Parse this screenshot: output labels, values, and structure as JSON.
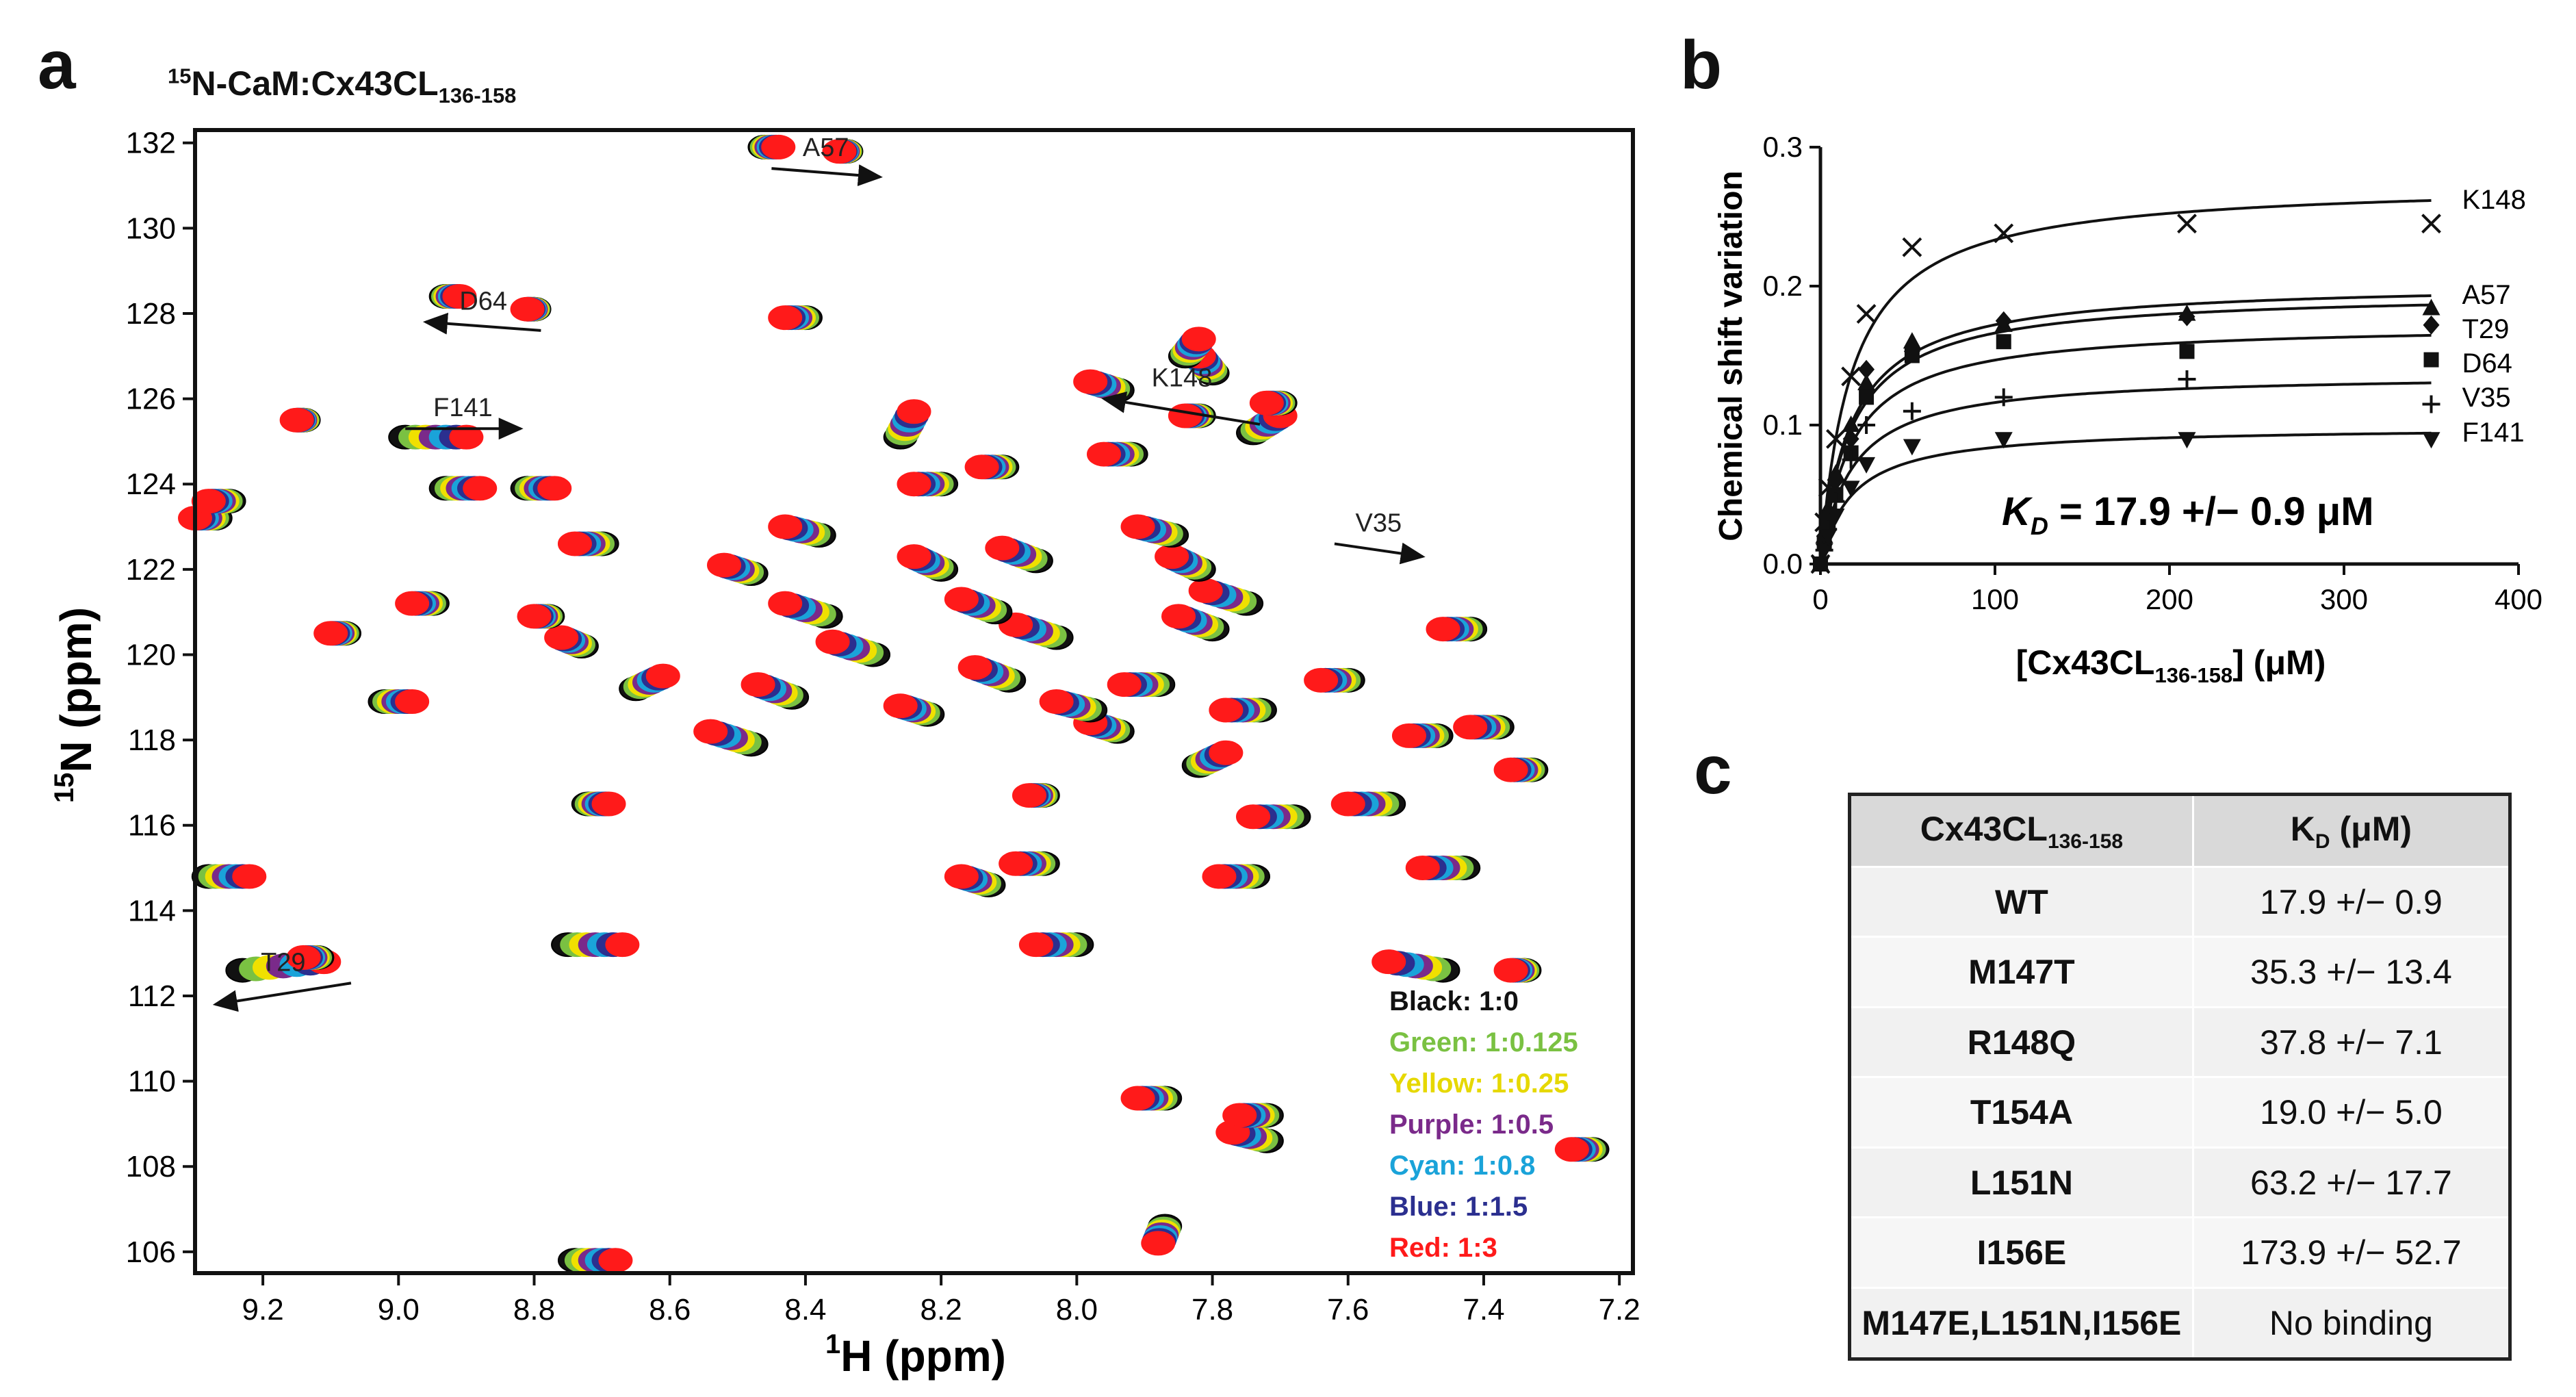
{
  "panels": {
    "a": {
      "letter": "a",
      "title_prefix": "15",
      "title_main": "N-CaM:Cx43CL",
      "title_sub": "136-158",
      "x_label_sup": "1",
      "x_label": "H (ppm)",
      "y_label_sup": "15",
      "y_label": "N (ppm)",
      "x_ticks": [
        "9.2",
        "9.0",
        "8.8",
        "8.6",
        "8.4",
        "8.2",
        "8.0",
        "7.8",
        "7.6",
        "7.4",
        "7.2"
      ],
      "y_ticks": [
        "106",
        "108",
        "110",
        "112",
        "114",
        "116",
        "118",
        "120",
        "122",
        "124",
        "126",
        "128",
        "130",
        "132"
      ],
      "arrow_labels": [
        "T29",
        "V35",
        "F141",
        "D64",
        "K148",
        "A57"
      ],
      "legend": [
        {
          "text": "Black: 1:0",
          "color": "#111111"
        },
        {
          "text": "Green: 1:0.125",
          "color": "#7ac142"
        },
        {
          "text": "Yellow: 1:0.25",
          "color": "#f0e000"
        },
        {
          "text": "Purple: 1:0.5",
          "color": "#7a2a8a"
        },
        {
          "text": "Cyan: 1:0.8",
          "color": "#1aa3d9"
        },
        {
          "text": "Blue: 1:1.5",
          "color": "#2b2f8f"
        },
        {
          "text": "Red: 1:3",
          "color": "#ff1a1a"
        }
      ]
    },
    "b": {
      "letter": "b",
      "y_label": "Chemical shift variation",
      "x_label_main": "[Cx43CL",
      "x_label_sub": "136-158",
      "x_label_end": "] (μM)",
      "kd_label_k": "K",
      "kd_label_sub": "D",
      "kd_label_val": " = 17.9 +/− 0.9 μM"
    },
    "c": {
      "letter": "c",
      "header_col1_main": "Cx43CL",
      "header_col1_sub": "136-158",
      "header_col2_main": "K",
      "header_col2_sub": "D",
      "header_col2_end": " (μM)",
      "rows": [
        {
          "variant": "WT",
          "kd": "17.9 +/− 0.9"
        },
        {
          "variant": "M147T",
          "kd": "35.3 +/− 13.4"
        },
        {
          "variant": "R148Q",
          "kd": "37.8 +/− 7.1"
        },
        {
          "variant": "T154A",
          "kd": "19.0 +/− 5.0"
        },
        {
          "variant": "L151N",
          "kd": "63.2 +/− 17.7"
        },
        {
          "variant": "I156E",
          "kd": "173.9 +/− 52.7"
        },
        {
          "variant": "M147E,L151N,I156E",
          "kd": "No binding"
        }
      ]
    }
  },
  "chart_data": [
    {
      "type": "scatter",
      "title": "15N-CaM:Cx43CL136-158",
      "xlabel": "1H (ppm)",
      "ylabel": "15N (ppm)",
      "xlim": [
        9.3,
        7.18
      ],
      "ylim": [
        132.3,
        105.5
      ],
      "x_reversed": true,
      "y_reversed": true,
      "titration_series": [
        "Black: 1:0",
        "Green: 1:0.125",
        "Yellow: 1:0.25",
        "Purple: 1:0.5",
        "Cyan: 1:0.8",
        "Blue: 1:1.5",
        "Red: 1:3"
      ],
      "peaks": [
        {
          "x": 8.74,
          "y": 105.8,
          "dx": -0.06,
          "dy": 0
        },
        {
          "x": 7.87,
          "y": 106.6,
          "dx": 0.01,
          "dy": -0.4
        },
        {
          "x": 7.24,
          "y": 108.4,
          "dx": 0.03,
          "dy": 0
        },
        {
          "x": 7.72,
          "y": 108.6,
          "dx": 0.05,
          "dy": 0.2
        },
        {
          "x": 7.72,
          "y": 109.2,
          "dx": 0.04,
          "dy": 0
        },
        {
          "x": 7.87,
          "y": 109.6,
          "dx": 0.04,
          "dy": 0
        },
        {
          "x": 9.23,
          "y": 112.6,
          "dx": -0.12,
          "dy": 0.2
        },
        {
          "x": 9.12,
          "y": 112.9,
          "dx": 0.02,
          "dy": 0
        },
        {
          "x": 7.34,
          "y": 112.6,
          "dx": 0.02,
          "dy": 0
        },
        {
          "x": 8.75,
          "y": 113.2,
          "dx": -0.08,
          "dy": 0
        },
        {
          "x": 7.46,
          "y": 112.6,
          "dx": 0.08,
          "dy": 0.2
        },
        {
          "x": 8.0,
          "y": 113.2,
          "dx": 0.06,
          "dy": 0
        },
        {
          "x": 9.28,
          "y": 114.8,
          "dx": -0.06,
          "dy": 0
        },
        {
          "x": 8.13,
          "y": 114.6,
          "dx": 0.04,
          "dy": 0.2
        },
        {
          "x": 8.05,
          "y": 115.1,
          "dx": 0.04,
          "dy": 0
        },
        {
          "x": 7.74,
          "y": 114.8,
          "dx": 0.05,
          "dy": 0
        },
        {
          "x": 7.43,
          "y": 115.0,
          "dx": 0.06,
          "dy": 0
        },
        {
          "x": 8.72,
          "y": 116.5,
          "dx": -0.03,
          "dy": 0
        },
        {
          "x": 8.05,
          "y": 116.7,
          "dx": 0.02,
          "dy": 0
        },
        {
          "x": 7.68,
          "y": 116.2,
          "dx": 0.06,
          "dy": 0
        },
        {
          "x": 7.54,
          "y": 116.5,
          "dx": 0.06,
          "dy": 0
        },
        {
          "x": 7.33,
          "y": 117.3,
          "dx": 0.03,
          "dy": 0
        },
        {
          "x": 8.48,
          "y": 117.9,
          "dx": 0.06,
          "dy": 0.3
        },
        {
          "x": 7.94,
          "y": 118.2,
          "dx": 0.04,
          "dy": 0.2
        },
        {
          "x": 7.82,
          "y": 117.4,
          "dx": -0.04,
          "dy": 0.3
        },
        {
          "x": 8.22,
          "y": 118.6,
          "dx": 0.04,
          "dy": 0.2
        },
        {
          "x": 7.98,
          "y": 118.7,
          "dx": 0.05,
          "dy": 0.2
        },
        {
          "x": 7.73,
          "y": 118.7,
          "dx": 0.05,
          "dy": 0
        },
        {
          "x": 7.47,
          "y": 118.1,
          "dx": 0.04,
          "dy": 0
        },
        {
          "x": 7.38,
          "y": 118.3,
          "dx": 0.04,
          "dy": 0
        },
        {
          "x": 9.02,
          "y": 118.9,
          "dx": -0.04,
          "dy": 0
        },
        {
          "x": 8.65,
          "y": 119.2,
          "dx": -0.04,
          "dy": 0.3
        },
        {
          "x": 8.42,
          "y": 119.0,
          "dx": 0.05,
          "dy": 0.3
        },
        {
          "x": 8.1,
          "y": 119.4,
          "dx": 0.05,
          "dy": 0.3
        },
        {
          "x": 7.88,
          "y": 119.3,
          "dx": 0.05,
          "dy": 0
        },
        {
          "x": 7.6,
          "y": 119.4,
          "dx": 0.04,
          "dy": 0
        },
        {
          "x": 8.73,
          "y": 120.2,
          "dx": 0.03,
          "dy": 0.2
        },
        {
          "x": 8.3,
          "y": 120.0,
          "dx": 0.06,
          "dy": 0.3
        },
        {
          "x": 8.03,
          "y": 120.4,
          "dx": 0.06,
          "dy": 0.3
        },
        {
          "x": 7.8,
          "y": 120.6,
          "dx": 0.05,
          "dy": 0.3
        },
        {
          "x": 9.08,
          "y": 120.5,
          "dx": 0.02,
          "dy": 0
        },
        {
          "x": 8.78,
          "y": 120.9,
          "dx": 0.02,
          "dy": 0
        },
        {
          "x": 8.37,
          "y": 120.9,
          "dx": 0.06,
          "dy": 0.3
        },
        {
          "x": 8.12,
          "y": 121.0,
          "dx": 0.05,
          "dy": 0.3
        },
        {
          "x": 7.75,
          "y": 121.2,
          "dx": 0.06,
          "dy": 0.3
        },
        {
          "x": 7.42,
          "y": 120.6,
          "dx": 0.04,
          "dy": 0
        },
        {
          "x": 8.95,
          "y": 121.2,
          "dx": 0.03,
          "dy": 0
        },
        {
          "x": 8.48,
          "y": 121.9,
          "dx": 0.04,
          "dy": 0.2
        },
        {
          "x": 8.2,
          "y": 122.0,
          "dx": 0.04,
          "dy": 0.3
        },
        {
          "x": 8.06,
          "y": 122.2,
          "dx": 0.05,
          "dy": 0.3
        },
        {
          "x": 7.82,
          "y": 122.0,
          "dx": 0.04,
          "dy": 0.3
        },
        {
          "x": 9.27,
          "y": 123.2,
          "dx": 0.03,
          "dy": 0
        },
        {
          "x": 8.7,
          "y": 122.6,
          "dx": 0.04,
          "dy": 0
        },
        {
          "x": 8.38,
          "y": 122.8,
          "dx": 0.05,
          "dy": 0.2
        },
        {
          "x": 7.86,
          "y": 122.8,
          "dx": 0.05,
          "dy": 0.2
        },
        {
          "x": 9.25,
          "y": 123.6,
          "dx": 0.03,
          "dy": 0
        },
        {
          "x": 8.81,
          "y": 123.9,
          "dx": -0.04,
          "dy": 0
        },
        {
          "x": 8.93,
          "y": 123.9,
          "dx": -0.05,
          "dy": 0
        },
        {
          "x": 8.2,
          "y": 124.0,
          "dx": 0.04,
          "dy": 0
        },
        {
          "x": 8.11,
          "y": 124.4,
          "dx": 0.03,
          "dy": 0
        },
        {
          "x": 7.92,
          "y": 124.7,
          "dx": 0.04,
          "dy": 0
        },
        {
          "x": 8.26,
          "y": 125.1,
          "dx": -0.02,
          "dy": 0.6
        },
        {
          "x": 8.99,
          "y": 125.1,
          "dx": -0.09,
          "dy": 0
        },
        {
          "x": 9.14,
          "y": 125.5,
          "dx": 0.01,
          "dy": 0
        },
        {
          "x": 7.74,
          "y": 125.2,
          "dx": -0.04,
          "dy": 0.4
        },
        {
          "x": 7.7,
          "y": 125.9,
          "dx": 0.02,
          "dy": 0
        },
        {
          "x": 7.82,
          "y": 125.6,
          "dx": 0.02,
          "dy": 0
        },
        {
          "x": 7.8,
          "y": 126.6,
          "dx": 0.02,
          "dy": 0.4
        },
        {
          "x": 7.84,
          "y": 127.0,
          "dx": -0.02,
          "dy": 0.4
        },
        {
          "x": 7.94,
          "y": 126.2,
          "dx": 0.04,
          "dy": 0.2
        },
        {
          "x": 8.4,
          "y": 127.9,
          "dx": 0.03,
          "dy": 0
        },
        {
          "x": 8.8,
          "y": 128.1,
          "dx": 0.01,
          "dy": 0
        },
        {
          "x": 8.93,
          "y": 128.4,
          "dx": -0.02,
          "dy": 0
        },
        {
          "x": 8.46,
          "y": 131.9,
          "dx": -0.02,
          "dy": 0
        },
        {
          "x": 8.34,
          "y": 131.8,
          "dx": 0.01,
          "dy": 0
        }
      ],
      "arrows": [
        {
          "label": "T29",
          "from": [
            9.07,
            112.3
          ],
          "to": [
            9.27,
            111.8
          ]
        },
        {
          "label": "V35",
          "from": [
            7.62,
            122.6
          ],
          "to": [
            7.49,
            122.3
          ]
        },
        {
          "label": "F141",
          "from": [
            8.99,
            125.3
          ],
          "to": [
            8.82,
            125.3
          ]
        },
        {
          "label": "D64",
          "from": [
            8.79,
            127.6
          ],
          "to": [
            8.96,
            127.8
          ]
        },
        {
          "label": "K148",
          "from": [
            7.73,
            125.4
          ],
          "to": [
            7.96,
            126.0
          ]
        },
        {
          "label": "A57",
          "from": [
            8.45,
            131.4
          ],
          "to": [
            8.29,
            131.2
          ]
        }
      ]
    },
    {
      "type": "scatter",
      "xlabel": "[Cx43CL136-158] (μM)",
      "ylabel": "Chemical shift variation",
      "xlim": [
        0,
        400
      ],
      "ylim": [
        0,
        0.3
      ],
      "x_ticks": [
        0,
        100,
        200,
        300,
        400
      ],
      "y_ticks": [
        0.0,
        0.1,
        0.2,
        0.3
      ],
      "x_tick_labels": [
        "0",
        "100",
        "200",
        "300",
        "400"
      ],
      "y_tick_labels": [
        "0.0",
        "0.1",
        "0.2",
        "0.3"
      ],
      "kd_annotation": "KD = 17.9 +/− 0.9 μM",
      "concentrations": [
        0,
        2.2,
        4.4,
        8.8,
        17.5,
        26.3,
        52.5,
        105,
        210,
        350
      ],
      "series": [
        {
          "name": "K148",
          "marker": "x",
          "bmax": 0.275,
          "kd": 17.9,
          "values": [
            0,
            0.03,
            0.055,
            0.09,
            0.135,
            0.18,
            0.228,
            0.238,
            0.245,
            0.245
          ]
        },
        {
          "name": "A57",
          "marker": "triangle-up",
          "bmax": 0.203,
          "kd": 17.9,
          "values": [
            0,
            0.02,
            0.04,
            0.065,
            0.1,
            0.13,
            0.16,
            0.172,
            0.18,
            0.184
          ]
        },
        {
          "name": "T29",
          "marker": "diamond",
          "bmax": 0.196,
          "kd": 17.9,
          "values": [
            0,
            0.02,
            0.035,
            0.06,
            0.09,
            0.14,
            0.153,
            0.175,
            0.178,
            0.172
          ]
        },
        {
          "name": "D64",
          "marker": "square",
          "bmax": 0.173,
          "kd": 17.9,
          "values": [
            0,
            0.015,
            0.03,
            0.05,
            0.08,
            0.12,
            0.15,
            0.16,
            0.153,
            0.147
          ]
        },
        {
          "name": "V35",
          "marker": "plus",
          "bmax": 0.137,
          "kd": 17.9,
          "values": [
            0,
            0.01,
            0.025,
            0.045,
            0.075,
            0.1,
            0.11,
            0.12,
            0.133,
            0.115
          ]
        },
        {
          "name": "F141",
          "marker": "triangle-down",
          "bmax": 0.099,
          "kd": 17.9,
          "values": [
            0,
            0.01,
            0.02,
            0.035,
            0.055,
            0.072,
            0.085,
            0.09,
            0.09,
            0.09
          ]
        }
      ]
    }
  ]
}
